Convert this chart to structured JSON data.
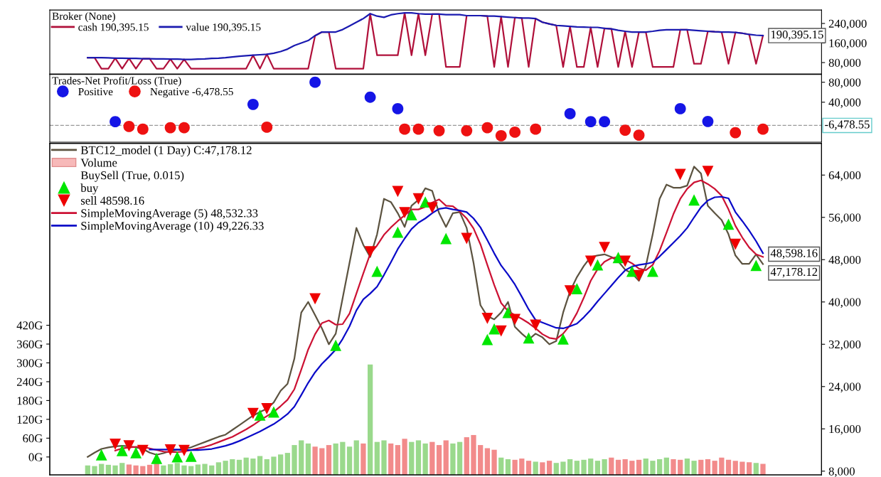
{
  "chart_data": [
    {
      "type": "line",
      "legend_title": "Broker (None)",
      "legend": "top left",
      "categories": [
        null,
        null,
        null,
        null,
        null,
        null,
        null,
        null,
        null,
        null,
        null,
        null,
        null,
        null,
        null,
        null,
        null,
        null,
        null,
        null,
        null,
        null,
        null,
        null,
        null,
        null,
        null,
        null,
        null,
        null,
        null,
        null,
        null,
        null,
        null,
        null,
        null,
        null,
        null,
        null,
        null,
        null,
        null,
        null,
        null,
        null,
        null,
        null,
        null,
        null,
        null,
        null,
        null,
        null,
        null,
        null,
        null,
        null,
        null,
        null,
        null,
        null,
        null,
        null,
        null,
        null,
        null,
        null,
        null,
        null,
        null,
        null,
        null,
        null,
        null,
        null,
        null,
        null,
        null,
        null,
        null,
        null,
        null,
        null,
        null,
        null,
        null,
        null,
        null,
        null,
        null,
        null,
        null,
        null,
        null,
        null,
        null,
        null,
        null
      ],
      "ylim": [
        33500,
        295000
      ],
      "yticks": [
        {
          "value": 80000,
          "label": "80,000"
        },
        {
          "value": 160000,
          "label": "160,000"
        },
        {
          "value": 240000,
          "label": "240,000"
        }
      ],
      "annotations": [
        "190,395.15"
      ],
      "series": [
        {
          "name": "cash 190,395.15",
          "color": "#b0103a",
          "values": [
            100000,
            100000,
            55000,
            55000,
            98000,
            55000,
            97000,
            55000,
            96000,
            96000,
            55000,
            55000,
            94000,
            55000,
            93000,
            55000,
            55000,
            55000,
            55000,
            55000,
            55000,
            55000,
            55000,
            55000,
            110000,
            55000,
            114000,
            55000,
            55000,
            55000,
            55000,
            55000,
            55000,
            190000,
            205000,
            205000,
            55000,
            55000,
            55000,
            55000,
            55000,
            280000,
            110000,
            110000,
            110000,
            110000,
            283000,
            110000,
            280000,
            110000,
            278000,
            278000,
            62000,
            62000,
            62000,
            272000,
            272000,
            272000,
            270000,
            62000,
            268000,
            62000,
            264000,
            262000,
            62000,
            260000,
            245000,
            238000,
            232000,
            62000,
            228000,
            62000,
            62000,
            224000,
            62000,
            220000,
            218000,
            62000,
            208000,
            62000,
            205000,
            205000,
            62000,
            62000,
            62000,
            62000,
            214000,
            214000,
            75000,
            75000,
            208000,
            206000,
            205000,
            75000,
            203000,
            200000,
            195000,
            75000,
            190395.15
          ]
        },
        {
          "name": "value 190,395.15",
          "color": "#1a1ab0",
          "values": [
            100000,
            100000,
            100000,
            99000,
            98000,
            98000,
            97000,
            97000,
            96000,
            96000,
            95000,
            95000,
            94000,
            94000,
            93000,
            93000,
            94000,
            95000,
            97000,
            98000,
            100000,
            103000,
            106000,
            108000,
            110000,
            112000,
            114000,
            118000,
            125000,
            135000,
            150000,
            160000,
            170000,
            190000,
            205000,
            205000,
            205000,
            215000,
            230000,
            245000,
            260000,
            280000,
            270000,
            265000,
            275000,
            280000,
            283000,
            283000,
            280000,
            278000,
            278000,
            278000,
            276000,
            276000,
            276000,
            272000,
            272000,
            272000,
            270000,
            270000,
            268000,
            266000,
            264000,
            262000,
            262000,
            260000,
            245000,
            238000,
            232000,
            230000,
            228000,
            226000,
            225000,
            224000,
            224000,
            220000,
            218000,
            212000,
            208000,
            205000,
            205000,
            205000,
            208000,
            212000,
            214000,
            214000,
            214000,
            214000,
            212000,
            210000,
            208000,
            206000,
            205000,
            205000,
            203000,
            200000,
            195000,
            192000,
            190395.15
          ]
        }
      ]
    },
    {
      "type": "scatter",
      "legend_title": "Trades-Net Profit/Loss (True)",
      "legend": "top left",
      "marker": "circle",
      "categories": [
        null,
        null,
        null,
        null,
        null,
        null,
        null,
        null,
        null,
        null,
        null,
        null,
        null,
        null,
        null,
        null,
        null,
        null,
        null,
        null,
        null,
        null,
        null,
        null,
        null,
        null,
        null,
        null,
        null,
        null,
        null,
        null,
        null,
        null,
        null,
        null,
        null,
        null,
        null,
        null,
        null,
        null,
        null,
        null,
        null,
        null,
        null,
        null,
        null,
        null,
        null,
        null,
        null,
        null,
        null,
        null,
        null,
        null,
        null,
        null,
        null,
        null,
        null,
        null,
        null,
        null,
        null,
        null,
        null,
        null,
        null,
        null,
        null,
        null,
        null,
        null,
        null,
        null,
        null,
        null,
        null,
        null,
        null,
        null,
        null,
        null,
        null,
        null,
        null,
        null,
        null,
        null,
        null,
        null,
        null,
        null,
        null,
        null,
        null,
        null,
        null,
        null,
        null,
        null,
        null,
        null,
        null,
        null,
        null,
        null,
        null,
        null
      ],
      "ylim": [
        -40000,
        95700
      ],
      "yticks": [
        {
          "value": 40000,
          "label": "40,000"
        },
        {
          "value": 80000,
          "label": "80,000"
        }
      ],
      "ref_lines": [
        {
          "axis": "y",
          "value": -6478.55,
          "label": "-6,478.55",
          "color": "#999999",
          "line_style": "dashed"
        }
      ],
      "series": [
        {
          "name": "Positive",
          "color": "#1515e6",
          "values": [
            null,
            null,
            null,
            null,
            null,
            null,
            null,
            null,
            null,
            1000,
            null,
            null,
            null,
            null,
            null,
            null,
            null,
            null,
            null,
            null,
            null,
            null,
            null,
            null,
            null,
            null,
            null,
            null,
            null,
            35700,
            null,
            null,
            null,
            null,
            null,
            null,
            null,
            null,
            80000,
            null,
            null,
            null,
            null,
            null,
            null,
            null,
            50000,
            null,
            null,
            null,
            27000,
            null,
            null,
            null,
            null,
            null,
            null,
            null,
            null,
            null,
            null,
            null,
            null,
            null,
            null,
            null,
            null,
            null,
            null,
            null,
            null,
            null,
            null,
            null,
            null,
            17000,
            null,
            null,
            1000,
            null,
            1000,
            null,
            null,
            null,
            null,
            null,
            null,
            null,
            null,
            null,
            null,
            27000,
            null,
            null,
            null,
            1500,
            null,
            null,
            null,
            null,
            null,
            null,
            null,
            null,
            null,
            null,
            null,
            null,
            null,
            null,
            null,
            null
          ]
        },
        {
          "name": "Negative -6,478.55",
          "color": "#ee1111",
          "values": [
            null,
            null,
            null,
            null,
            null,
            null,
            null,
            null,
            null,
            null,
            null,
            -8600,
            null,
            -14000,
            null,
            null,
            null,
            -11000,
            null,
            -11000,
            null,
            null,
            null,
            null,
            null,
            null,
            null,
            null,
            null,
            null,
            null,
            -10000,
            null,
            null,
            null,
            null,
            null,
            null,
            null,
            null,
            null,
            null,
            null,
            null,
            null,
            null,
            null,
            null,
            null,
            null,
            null,
            -14000,
            null,
            -14000,
            null,
            null,
            -17000,
            null,
            null,
            null,
            -17000,
            null,
            null,
            -11000,
            null,
            -27000,
            null,
            -20000,
            null,
            null,
            -14000,
            null,
            null,
            null,
            null,
            null,
            null,
            null,
            null,
            null,
            null,
            null,
            null,
            -16000,
            null,
            -26000,
            null,
            null,
            null,
            null,
            null,
            null,
            null,
            null,
            null,
            null,
            null,
            null,
            null,
            -21000,
            null,
            null,
            null,
            -14000,
            null,
            null,
            null,
            null,
            null,
            null,
            null,
            null
          ]
        }
      ]
    },
    {
      "type": "line",
      "legend": "top left",
      "categories": [
        null,
        null,
        null,
        null,
        null,
        null,
        null,
        null,
        null,
        null,
        null,
        null,
        null,
        null,
        null,
        null,
        null,
        null,
        null,
        null,
        null,
        null,
        null,
        null,
        null,
        null,
        null,
        null,
        null,
        null,
        null,
        null,
        null,
        null,
        null,
        null,
        null,
        null,
        null,
        null,
        null,
        null,
        null,
        null,
        null,
        null,
        null,
        null,
        null,
        null,
        null,
        null,
        null,
        null,
        null,
        null,
        null,
        null,
        null,
        null,
        null,
        null,
        null,
        null,
        null,
        null,
        null,
        null,
        null,
        null,
        null,
        null,
        null,
        null,
        null,
        null,
        null,
        null,
        null,
        null,
        null,
        null,
        null,
        null,
        null,
        null,
        null,
        null,
        null,
        null,
        null,
        null,
        null,
        null,
        null,
        null,
        null,
        null,
        null
      ],
      "ylim": [
        -57,
        1000
      ],
      "yticks": [
        {
          "value": 0,
          "label": "0G"
        },
        {
          "value": 60,
          "label": "60G"
        },
        {
          "value": 120,
          "label": "120G"
        },
        {
          "value": 180,
          "label": "180G"
        },
        {
          "value": 240,
          "label": "240G"
        },
        {
          "value": 300,
          "label": "300G"
        },
        {
          "value": 360,
          "label": "360G"
        },
        {
          "value": 420,
          "label": "420G"
        }
      ],
      "y2lim": [
        7300,
        70000
      ],
      "y2ticks": [
        {
          "value": 8000,
          "label": "8,000"
        },
        {
          "value": 16000,
          "label": "16,000"
        },
        {
          "value": 24000,
          "label": "24,000"
        },
        {
          "value": 32000,
          "label": "32,000"
        },
        {
          "value": 40000,
          "label": "40,000"
        },
        {
          "value": 48000,
          "label": "48,000"
        },
        {
          "value": 56000,
          "label": "56,000"
        },
        {
          "value": 64000,
          "label": "64,000"
        }
      ],
      "annotations": [
        "BuySell (True, 0.015)",
        "48,598.16",
        "47,178.12"
      ],
      "series": [
        {
          "name": "BTC12_model (1 Day) C:47,178.12",
          "color": "#5c5340",
          "axis": "y2",
          "values": [
            10700,
            11500,
            12200,
            12500,
            12700,
            12800,
            12700,
            12500,
            12200,
            11500,
            11100,
            11400,
            11800,
            12000,
            12200,
            12500,
            13000,
            13500,
            14000,
            14500,
            14900,
            15800,
            16700,
            17600,
            18500,
            19200,
            19800,
            21000,
            23200,
            24500,
            29300,
            38000,
            40000,
            37500,
            35000,
            32000,
            34000,
            40700,
            47400,
            54000,
            50800,
            48500,
            52800,
            59500,
            58900,
            56800,
            54200,
            58200,
            59300,
            61500,
            61000,
            56800,
            54200,
            56800,
            57000,
            54000,
            47400,
            39400,
            37300,
            36700,
            38000,
            40000,
            35300,
            34000,
            32900,
            34000,
            33300,
            32000,
            32600,
            38000,
            42000,
            44700,
            46800,
            48500,
            48800,
            49000,
            48500,
            47700,
            46100,
            45400,
            44000,
            46800,
            52800,
            59500,
            62200,
            61600,
            61600,
            62000,
            65600,
            64300,
            58200,
            56800,
            55500,
            52800,
            48800,
            47200,
            47200,
            49000,
            47178.12
          ]
        },
        {
          "name": "Volume",
          "type": "bar",
          "axis": "y",
          "color": "#f28b8b",
          "base": [
            -57,
            -57,
            -57,
            -57,
            -57,
            -57,
            -57,
            -57,
            -57,
            -57,
            -57,
            -57,
            -57,
            -57,
            -57,
            -57,
            -57,
            -57,
            -57,
            -57,
            -57,
            -57,
            -57,
            -57,
            -57,
            -57,
            -57,
            -57,
            -57,
            -57,
            -57,
            -57,
            -57,
            -57,
            -57,
            -57,
            -57,
            -57,
            -57,
            -57,
            -57,
            -57,
            -57,
            -57,
            -57,
            -57,
            -57,
            -57,
            -57,
            -57,
            -57,
            -57,
            -57,
            -57,
            -57,
            -57,
            -57,
            -57,
            -57,
            -57,
            -57,
            -57,
            -57,
            -57,
            -57,
            -57,
            -57,
            -57,
            -57,
            -57,
            -57,
            -57,
            -57,
            -57,
            -57,
            -57,
            -57,
            -57,
            -57,
            -57,
            -57,
            -57,
            -57,
            -57,
            -57,
            -57,
            -57,
            -57,
            -57,
            -57,
            -57,
            -57,
            -57,
            -57,
            -57,
            -57,
            -57,
            -57,
            -57
          ],
          "values": [
            30,
            28,
            35,
            32,
            30,
            38,
            33,
            30,
            28,
            32,
            36,
            30,
            34,
            38,
            30,
            28,
            33,
            35,
            30,
            40,
            45,
            50,
            48,
            55,
            52,
            60,
            50,
            58,
            65,
            70,
            95,
            110,
            100,
            90,
            85,
            95,
            100,
            105,
            90,
            110,
            100,
            352,
            105,
            110,
            100,
            95,
            115,
            105,
            110,
            100,
            105,
            95,
            110,
            100,
            105,
            120,
            127,
            95,
            85,
            80,
            55,
            50,
            48,
            52,
            45,
            42,
            40,
            45,
            38,
            42,
            50,
            45,
            48,
            52,
            45,
            50,
            55,
            48,
            50,
            45,
            48,
            52,
            45,
            50,
            55,
            50,
            48,
            52,
            45,
            48,
            50,
            45,
            55,
            48,
            45,
            42,
            40,
            38,
            35
          ],
          "colors": [
            "#9ad98c",
            "#9ad98c",
            "#9ad98c",
            "#9ad98c",
            "#9ad98c",
            "#9ad98c",
            "#f28b8b",
            "#f28b8b",
            "#f28b8b",
            "#f28b8b",
            "#f28b8b",
            "#9ad98c",
            "#9ad98c",
            "#9ad98c",
            "#9ad98c",
            "#9ad98c",
            "#9ad98c",
            "#9ad98c",
            "#9ad98c",
            "#9ad98c",
            "#9ad98c",
            "#9ad98c",
            "#9ad98c",
            "#9ad98c",
            "#9ad98c",
            "#9ad98c",
            "#9ad98c",
            "#9ad98c",
            "#9ad98c",
            "#9ad98c",
            "#9ad98c",
            "#9ad98c",
            "#9ad98c",
            "#f28b8b",
            "#f28b8b",
            "#f28b8b",
            "#9ad98c",
            "#9ad98c",
            "#9ad98c",
            "#9ad98c",
            "#f28b8b",
            "#9ad98c",
            "#9ad98c",
            "#9ad98c",
            "#f28b8b",
            "#f28b8b",
            "#f28b8b",
            "#9ad98c",
            "#9ad98c",
            "#9ad98c",
            "#f28b8b",
            "#f28b8b",
            "#f28b8b",
            "#9ad98c",
            "#9ad98c",
            "#f28b8b",
            "#f28b8b",
            "#f28b8b",
            "#f28b8b",
            "#f28b8b",
            "#9ad98c",
            "#9ad98c",
            "#f28b8b",
            "#f28b8b",
            "#f28b8b",
            "#9ad98c",
            "#f28b8b",
            "#f28b8b",
            "#9ad98c",
            "#9ad98c",
            "#9ad98c",
            "#9ad98c",
            "#9ad98c",
            "#9ad98c",
            "#9ad98c",
            "#9ad98c",
            "#f28b8b",
            "#f28b8b",
            "#f28b8b",
            "#f28b8b",
            "#f28b8b",
            "#9ad98c",
            "#9ad98c",
            "#9ad98c",
            "#9ad98c",
            "#f28b8b",
            "#f28b8b",
            "#9ad98c",
            "#9ad98c",
            "#f28b8b",
            "#f28b8b",
            "#f28b8b",
            "#f28b8b",
            "#f28b8b",
            "#f28b8b",
            "#f28b8b",
            "#f28b8b",
            "#9ad98c",
            "#f28b8b"
          ]
        },
        {
          "name": "buy",
          "type": "scatter",
          "marker": "triangle",
          "color": "#00e600",
          "axis": "y2",
          "values": [
            null,
            null,
            11100,
            null,
            null,
            11900,
            null,
            11500,
            null,
            null,
            10400,
            null,
            null,
            10700,
            null,
            10800,
            null,
            null,
            null,
            null,
            null,
            null,
            null,
            null,
            null,
            18600,
            null,
            19200,
            null,
            null,
            null,
            null,
            null,
            null,
            null,
            null,
            31800,
            null,
            null,
            null,
            null,
            null,
            45800,
            null,
            null,
            53200,
            null,
            56500,
            null,
            58900,
            null,
            null,
            52000,
            null,
            null,
            null,
            null,
            null,
            32900,
            34900,
            null,
            38000,
            null,
            null,
            33200,
            null,
            null,
            null,
            null,
            33000,
            null,
            42500,
            null,
            null,
            47000,
            null,
            null,
            48400,
            null,
            45800,
            null,
            null,
            45800,
            null,
            null,
            null,
            null,
            null,
            59300,
            null,
            null,
            null,
            null,
            54700,
            null,
            null,
            null,
            46900,
            null
          ]
        },
        {
          "name": "sell 48598.16",
          "type": "scatter",
          "marker": "triangle-down",
          "color": "#ee0000",
          "axis": "y2",
          "values": [
            null,
            null,
            null,
            null,
            13100,
            null,
            12800,
            null,
            11900,
            null,
            null,
            null,
            12000,
            null,
            11900,
            null,
            null,
            null,
            null,
            null,
            null,
            null,
            null,
            null,
            18900,
            null,
            19800,
            null,
            null,
            null,
            null,
            null,
            null,
            40600,
            null,
            null,
            null,
            null,
            null,
            null,
            null,
            49500,
            null,
            null,
            null,
            60900,
            56900,
            null,
            59500,
            null,
            57800,
            null,
            null,
            null,
            null,
            52000,
            null,
            null,
            36900,
            null,
            34500,
            null,
            36700,
            null,
            null,
            35600,
            null,
            null,
            null,
            null,
            42100,
            null,
            null,
            47700,
            null,
            50300,
            null,
            null,
            47700,
            null,
            45000,
            null,
            null,
            null,
            null,
            null,
            64100,
            null,
            null,
            null,
            64700,
            null,
            null,
            null,
            50900,
            null,
            null,
            null,
            null
          ]
        },
        {
          "name": "SimpleMovingAverage (5) 48,532.33",
          "color": "#cc1133",
          "axis": "y2",
          "values": [
            null,
            null,
            null,
            null,
            11900,
            12300,
            12500,
            12600,
            12600,
            12300,
            12000,
            11700,
            11600,
            11600,
            11700,
            12000,
            12300,
            12600,
            13000,
            13500,
            14000,
            14500,
            15200,
            15900,
            16700,
            17600,
            18400,
            19200,
            20300,
            21500,
            23500,
            27200,
            31000,
            33900,
            36000,
            36500,
            35700,
            35800,
            37800,
            41600,
            45400,
            49100,
            50700,
            52700,
            54100,
            55300,
            56400,
            57500,
            57500,
            58000,
            58800,
            59400,
            58200,
            58100,
            57100,
            55800,
            53900,
            50900,
            47000,
            43200,
            39800,
            38300,
            37500,
            36800,
            36000,
            35000,
            33900,
            33200,
            33000,
            34000,
            35600,
            37900,
            40800,
            44000,
            46200,
            47600,
            48300,
            48500,
            48000,
            47300,
            46300,
            46000,
            47000,
            49700,
            53100,
            56600,
            59500,
            61400,
            62600,
            63000,
            62300,
            61400,
            60100,
            57500,
            54400,
            52200,
            50300,
            49000,
            48532.33
          ]
        },
        {
          "name": "SimpleMovingAverage (10) 49,226.33",
          "color": "#0a0ac8",
          "axis": "y2",
          "values": [
            null,
            null,
            null,
            null,
            null,
            null,
            null,
            null,
            null,
            12100,
            12100,
            12100,
            12100,
            12100,
            12000,
            12000,
            12000,
            12100,
            12200,
            12500,
            12800,
            13200,
            13700,
            14300,
            14900,
            15500,
            16200,
            16900,
            17800,
            18800,
            20200,
            22400,
            24700,
            26700,
            28300,
            29600,
            31000,
            33000,
            35400,
            38400,
            40500,
            41600,
            42900,
            45100,
            47500,
            50000,
            52000,
            53800,
            55000,
            55800,
            56800,
            57600,
            57800,
            57500,
            57300,
            57000,
            55800,
            54100,
            51700,
            49200,
            46900,
            45200,
            43300,
            41000,
            38600,
            36600,
            36100,
            35600,
            35100,
            35000,
            35400,
            35900,
            37100,
            38500,
            40100,
            41600,
            43100,
            44600,
            46000,
            46700,
            47000,
            47200,
            47500,
            48600,
            49900,
            51200,
            52500,
            54000,
            56000,
            57900,
            59200,
            59800,
            59900,
            59600,
            57000,
            55300,
            53500,
            51500,
            49226.33
          ]
        }
      ]
    }
  ]
}
